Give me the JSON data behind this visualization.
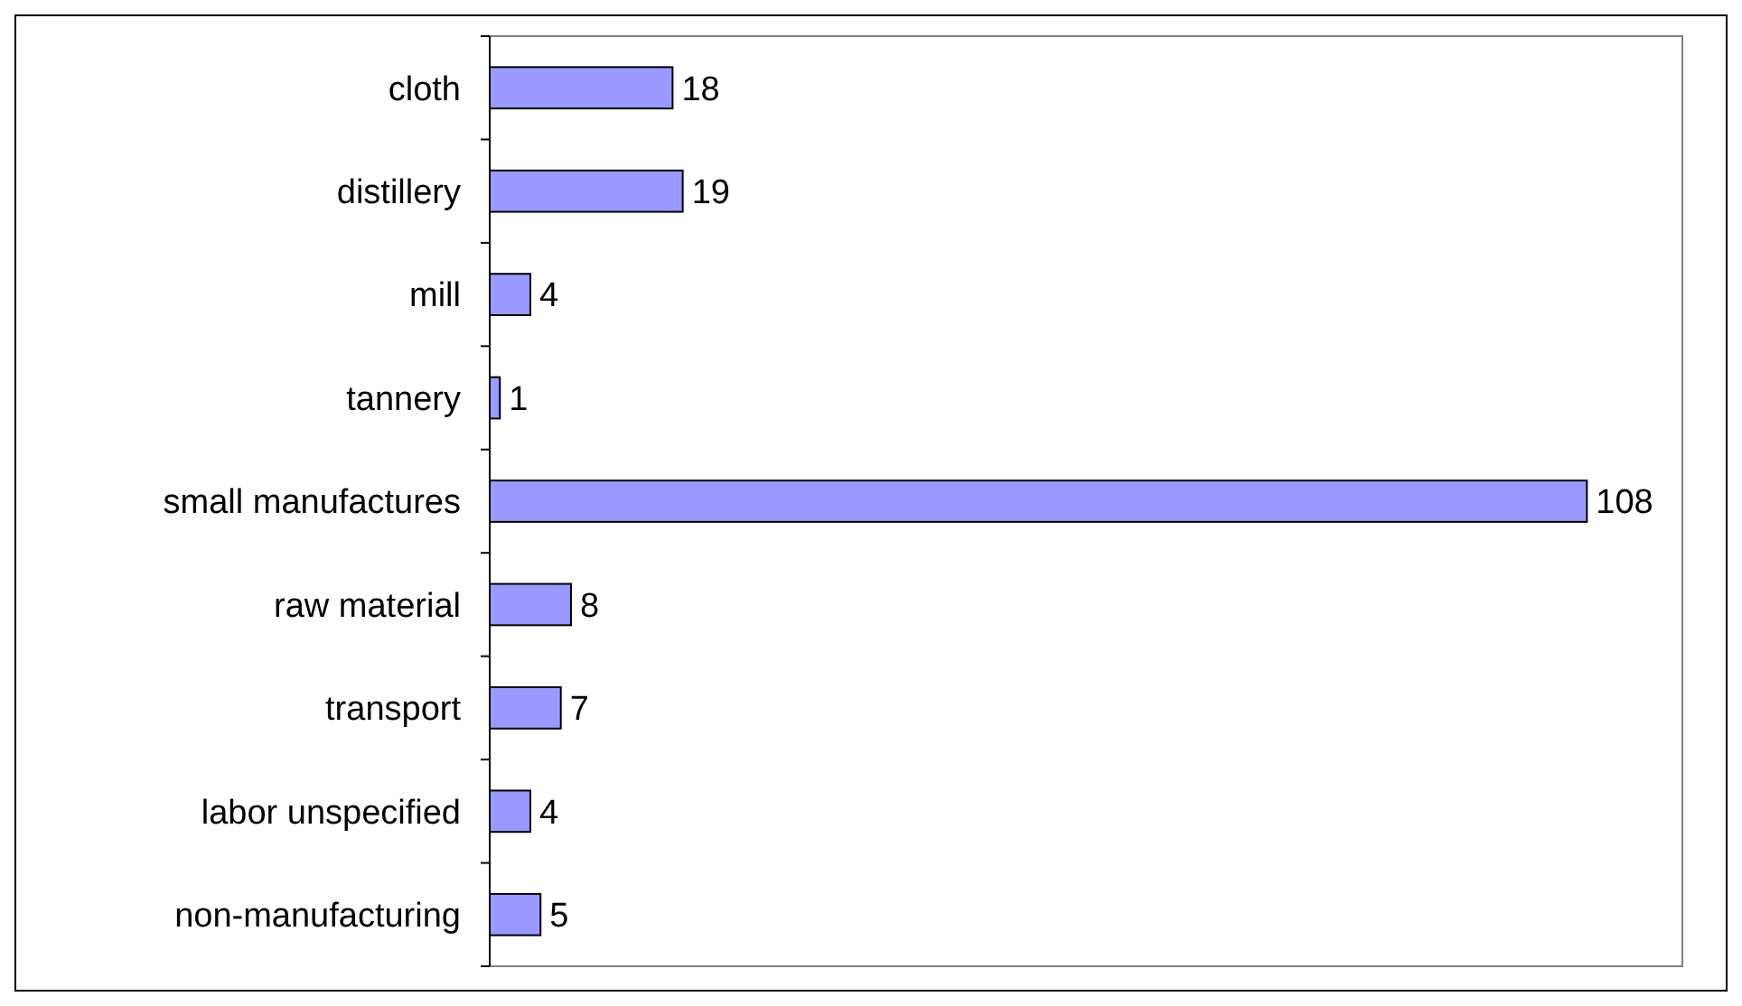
{
  "chart_data": {
    "type": "bar",
    "orientation": "horizontal",
    "categories": [
      "cloth",
      "distillery",
      "mill",
      "tannery",
      "small manufactures",
      "raw material",
      "transport",
      "labor unspecified",
      "non-manufacturing"
    ],
    "values": [
      18,
      19,
      4,
      1,
      108,
      8,
      7,
      4,
      5
    ],
    "color": "#9999ff",
    "data_labels": true
  }
}
